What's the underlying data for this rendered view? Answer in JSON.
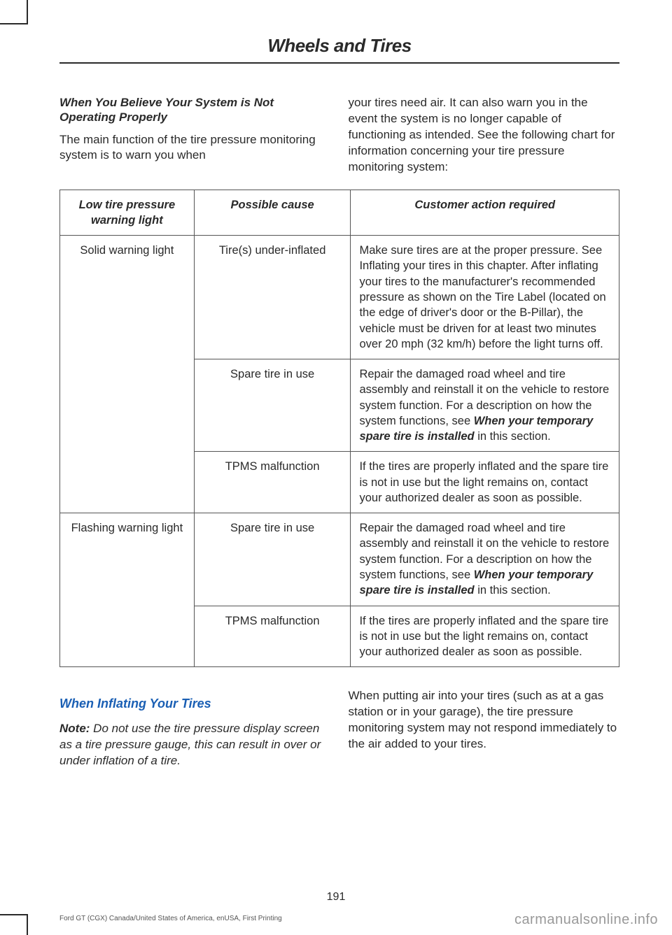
{
  "chapter": "Wheels and Tires",
  "intro": {
    "left": {
      "heading": "When You Believe Your System is Not Operating Properly",
      "body": "The main function of the tire pressure monitoring system is to warn you when"
    },
    "right": {
      "body": "your tires need air. It can also warn you in the event the system is no longer capable of functioning as intended. See the following chart for information concerning your tire pressure monitoring system:"
    }
  },
  "table": {
    "headers": {
      "c1": "Low tire pressure warning light",
      "c2": "Possible cause",
      "c3": "Customer action required"
    },
    "rows": [
      {
        "c1": "Solid warning light",
        "c1_rowspan": 3,
        "c2": "Tire(s) under-inflated",
        "c3_pre": "Make sure tires are at the proper pressure. See Inflating your tires in this chapter. After inflating your tires to the manufacturer's recommended pressure as shown on the Tire Label (located on the edge of driver's door or the B-Pillar), the vehicle must be driven for at least two minutes over 20 mph (32 km/h) before the light turns off.",
        "c3_bold": "",
        "c3_post": ""
      },
      {
        "c2": "Spare tire in use",
        "c3_pre": "Repair the damaged road wheel and tire assembly and reinstall it on the vehicle to restore system function. For a description on how the system functions, see ",
        "c3_bold": "When your temporary spare tire is installed",
        "c3_post": " in this section."
      },
      {
        "c2": "TPMS malfunction",
        "c3_pre": "If the tires are properly inflated and the spare tire is not in use but the light remains on, contact your authorized dealer as soon as possible.",
        "c3_bold": "",
        "c3_post": ""
      },
      {
        "c1": "Flashing warning light",
        "c1_rowspan": 2,
        "c2": "Spare tire in use",
        "c3_pre": "Repair the damaged road wheel and tire assembly and reinstall it on the vehicle to restore system function. For a description on how the system functions, see ",
        "c3_bold": "When your temporary spare tire is installed",
        "c3_post": " in this section."
      },
      {
        "c2": "TPMS malfunction",
        "c3_pre": "If the tires are properly inflated and the spare tire is not in use but the light remains on, contact your authorized dealer as soon as possible.",
        "c3_bold": "",
        "c3_post": ""
      }
    ],
    "col_widths": [
      "24%",
      "28%",
      "48%"
    ]
  },
  "lower": {
    "left": {
      "heading": "When Inflating Your Tires",
      "note_label": "Note:",
      "note_text": " Do not use the tire pressure display screen as a tire pressure gauge, this can result in over or under inflation of a tire."
    },
    "right": {
      "body": "When putting air into your tires (such as at a gas station or in your garage), the tire pressure monitoring system may not respond immediately to the air added to your tires."
    }
  },
  "page_number": "191",
  "fineprint": "Ford GT (CGX) Canada/United States of America, enUSA, First Printing",
  "watermark": "carmanualsonline.info",
  "colors": {
    "heading_blue": "#1a5fb4",
    "text": "#2a2a2a",
    "border": "#555555",
    "background": "#ffffff"
  }
}
